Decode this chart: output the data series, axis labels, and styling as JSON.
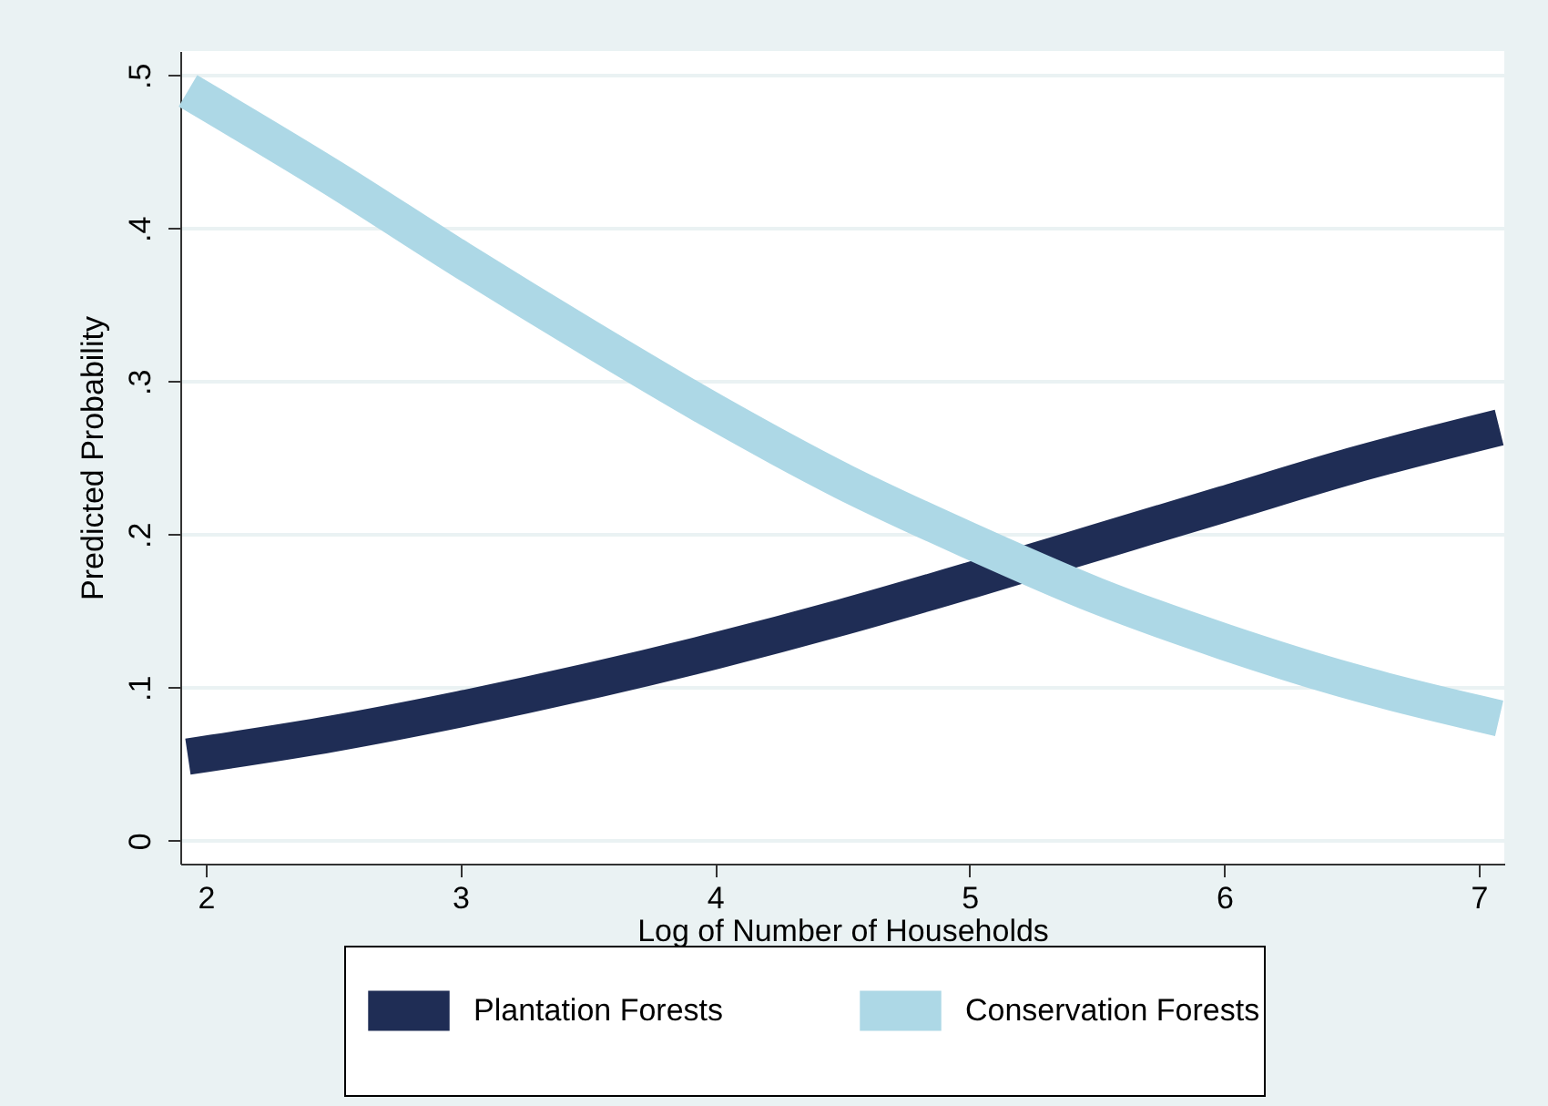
{
  "chart_data": {
    "type": "line",
    "xlabel": "Log of Number of Households",
    "ylabel": "Predicted Probability",
    "x": [
      1.93,
      2.5,
      3,
      3.5,
      4,
      4.5,
      5,
      5.5,
      6,
      6.5,
      7.08
    ],
    "series": [
      {
        "name": "Plantation Forests",
        "color": "#1f2d55",
        "values": [
          0.055,
          0.07,
          0.086,
          0.104,
          0.124,
          0.146,
          0.17,
          0.195,
          0.22,
          0.245,
          0.27
        ]
      },
      {
        "name": "Conservation Forests",
        "color": "#add8e6",
        "values": [
          0.49,
          0.433,
          0.38,
          0.329,
          0.28,
          0.235,
          0.196,
          0.16,
          0.13,
          0.104,
          0.08
        ]
      }
    ],
    "xlim": [
      1.9,
      7.1
    ],
    "xticks": [
      2,
      3,
      4,
      5,
      6,
      7
    ],
    "ylim": [
      -0.015,
      0.516
    ],
    "yticks": [
      0,
      {
        "value": 0.1,
        "label": ".1"
      },
      {
        "value": 0.2,
        "label": ".2"
      },
      {
        "value": 0.3,
        "label": ".3"
      },
      {
        "value": 0.4,
        "label": ".4"
      },
      {
        "value": 0.5,
        "label": ".5"
      }
    ],
    "grid": "y",
    "legend": "bottom",
    "line_style": "solid",
    "marker": "none"
  }
}
